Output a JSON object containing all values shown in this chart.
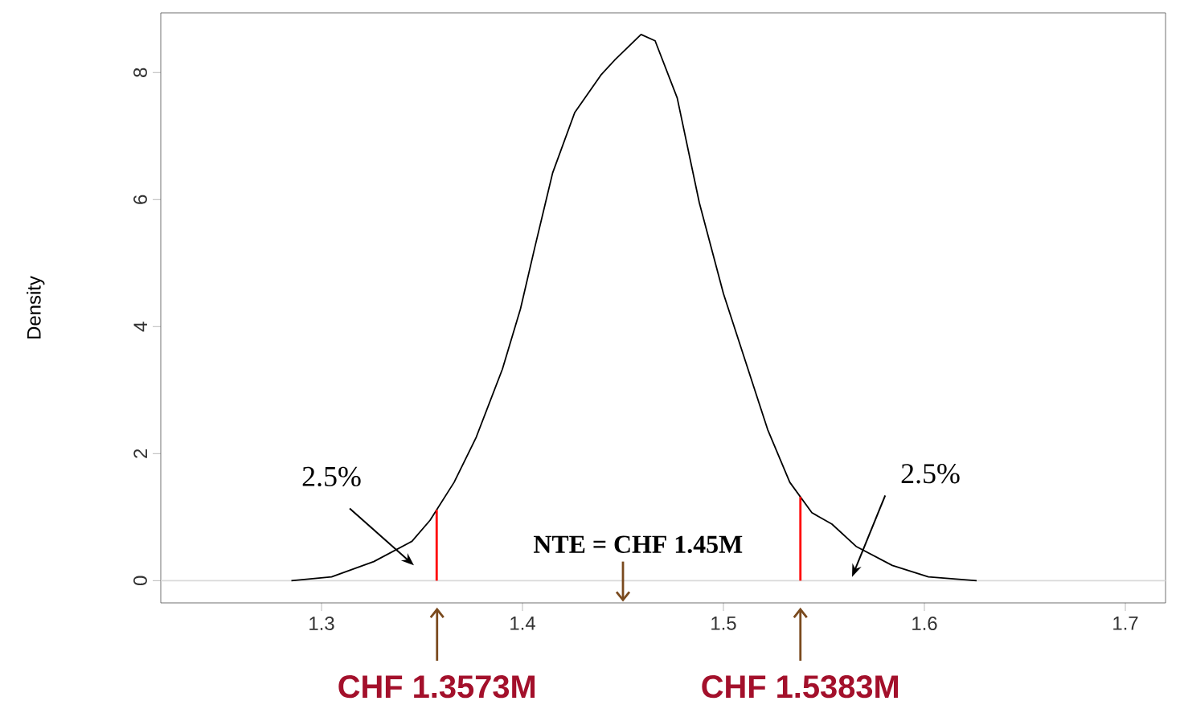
{
  "chart_data": {
    "type": "line",
    "ylabel": "Density",
    "xlim": [
      1.22,
      1.72
    ],
    "ylim": [
      -0.35,
      8.94
    ],
    "xticks": [
      1.3,
      1.4,
      1.5,
      1.6,
      1.7
    ],
    "yticks": [
      0,
      2,
      4,
      6,
      8
    ],
    "series": [
      {
        "color": "#000000",
        "x": [
          1.285,
          1.305,
          1.326,
          1.345,
          1.354,
          1.366,
          1.377,
          1.39,
          1.399,
          1.406,
          1.415,
          1.426,
          1.439,
          1.446,
          1.459,
          1.466,
          1.477,
          1.488,
          1.5,
          1.511,
          1.522,
          1.533,
          1.544,
          1.554,
          1.566,
          1.584,
          1.602,
          1.626
        ],
        "values": [
          0,
          0.06,
          0.3,
          0.62,
          0.95,
          1.55,
          2.26,
          3.33,
          4.28,
          5.23,
          6.42,
          7.37,
          7.96,
          8.2,
          8.6,
          8.5,
          7.6,
          5.95,
          4.52,
          3.45,
          2.38,
          1.55,
          1.07,
          0.89,
          0.54,
          0.24,
          0.06,
          0
        ]
      }
    ],
    "ref_lines": [
      {
        "axis": "y",
        "value": 0,
        "color": "#d9d9d9"
      },
      {
        "axis": "x",
        "value": 1.3573,
        "color": "#ff0000"
      },
      {
        "axis": "x",
        "value": 1.5383,
        "color": "#ff0000"
      }
    ],
    "annotations": [
      "2.5%",
      "2.5%",
      "NTE = CHF 1.45M",
      "CHF 1.3573M",
      "CHF 1.5383M"
    ]
  }
}
